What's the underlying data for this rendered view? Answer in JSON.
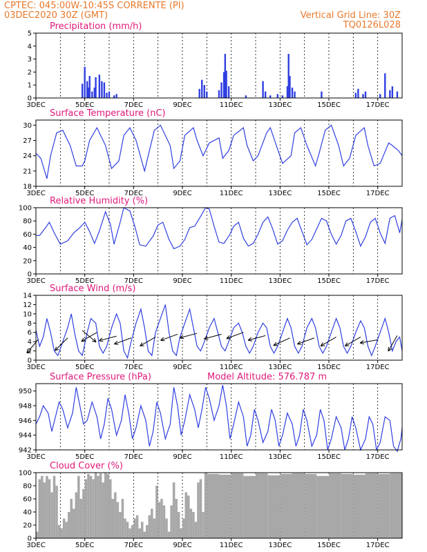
{
  "header": {
    "line1_left": "CPTEC:   045:00W-10:45S   CORRENTE (PI)",
    "line2_left": "03DEC2020 30Z (GMT)",
    "line1_right": "Vertical Grid Line: 30Z",
    "line2_right": "TQ0126L028"
  },
  "colors": {
    "series": "#2f3fe0",
    "cloud": "#a8a8a8",
    "title": "#e0187a",
    "header": "#e8792a"
  },
  "x_ticks": [
    "3DEC",
    "5DEC",
    "7DEC",
    "9DEC",
    "11DEC",
    "13DEC",
    "15DEC",
    "17DEC"
  ],
  "chart_data": [
    {
      "type": "bar",
      "title": "Precipitation (mm/h)",
      "ylim": [
        0,
        5
      ],
      "yticks": [
        0,
        1,
        2,
        3,
        4,
        5
      ],
      "x": [
        4.9,
        5.0,
        5.1,
        5.15,
        5.2,
        5.3,
        5.4,
        5.45,
        5.6,
        5.7,
        5.8,
        5.9,
        6.0,
        6.2,
        6.3,
        9.7,
        9.8,
        9.9,
        10.0,
        10.5,
        10.6,
        10.7,
        10.75,
        10.8,
        10.9,
        11.6,
        12.3,
        12.4,
        12.6,
        12.9,
        13.1,
        13.3,
        13.35,
        13.4,
        13.5,
        13.6,
        14.7,
        16.1,
        16.2,
        16.4,
        16.5,
        17.1,
        17.3,
        17.5,
        17.6,
        17.8
      ],
      "values": [
        1.1,
        2.4,
        1.3,
        0.8,
        1.7,
        0.5,
        0.8,
        1.6,
        1.8,
        1.3,
        1.2,
        0.4,
        0.5,
        0.2,
        0.3,
        0.7,
        1.4,
        1.0,
        0.5,
        0.6,
        1.2,
        2.0,
        3.4,
        2.1,
        0.9,
        0.2,
        1.3,
        0.5,
        0.2,
        0.3,
        0.2,
        0.9,
        3.4,
        1.7,
        0.8,
        0.5,
        0.5,
        0.4,
        0.7,
        0.3,
        0.5,
        0.3,
        1.9,
        0.6,
        0.9,
        0.5
      ]
    },
    {
      "type": "line",
      "title": "Surface Temperature (nC)",
      "ylim": [
        18,
        31
      ],
      "yticks": [
        18,
        21,
        24,
        27,
        30
      ],
      "x": [
        3.0,
        3.2,
        3.45,
        3.6,
        3.85,
        4.1,
        4.4,
        4.65,
        4.9,
        5.0,
        5.2,
        5.5,
        5.85,
        6.1,
        6.4,
        6.6,
        6.85,
        7.1,
        7.45,
        7.6,
        7.85,
        8.1,
        8.5,
        8.65,
        8.9,
        9.1,
        9.45,
        9.6,
        9.85,
        10.1,
        10.5,
        10.65,
        10.9,
        11.1,
        11.5,
        11.65,
        11.9,
        12.1,
        12.45,
        12.6,
        12.85,
        13.1,
        13.45,
        13.6,
        13.85,
        14.1,
        14.45,
        14.6,
        14.85,
        15.1,
        15.4,
        15.6,
        15.85,
        16.1,
        16.45,
        16.6,
        16.85,
        17.1,
        17.45,
        17.6,
        17.85,
        18.0
      ],
      "values": [
        24.5,
        23.5,
        19.5,
        24,
        28.5,
        29,
        26,
        22,
        22,
        23,
        27,
        29.5,
        26,
        21.5,
        23,
        28,
        29.5,
        27,
        21,
        24,
        29,
        30,
        26,
        21.5,
        23,
        28,
        29.5,
        27,
        24,
        26.5,
        27.5,
        23.5,
        25,
        28,
        29.5,
        26,
        23,
        24,
        28.5,
        29.5,
        26,
        22.5,
        24,
        28.5,
        29.5,
        26,
        22,
        24.5,
        29,
        30,
        26,
        22,
        23.5,
        28,
        29.5,
        26,
        22,
        22.5,
        26.5,
        26,
        25,
        24
      ]
    },
    {
      "type": "line",
      "title": "Relative Humidity (%)",
      "ylim": [
        0,
        100
      ],
      "yticks": [
        0,
        20,
        40,
        60,
        80,
        100
      ],
      "x": [
        3.0,
        3.15,
        3.4,
        3.55,
        3.75,
        4.0,
        4.3,
        4.55,
        4.8,
        5.0,
        5.2,
        5.4,
        5.6,
        5.85,
        6.05,
        6.2,
        6.45,
        6.6,
        6.85,
        7.05,
        7.25,
        7.5,
        7.8,
        8.0,
        8.2,
        8.45,
        8.65,
        8.9,
        9.1,
        9.3,
        9.5,
        9.7,
        9.95,
        10.1,
        10.3,
        10.5,
        10.7,
        10.95,
        11.1,
        11.3,
        11.5,
        11.7,
        11.9,
        12.1,
        12.3,
        12.5,
        12.7,
        12.9,
        13.1,
        13.3,
        13.5,
        13.7,
        13.9,
        14.1,
        14.3,
        14.5,
        14.7,
        14.9,
        15.1,
        15.3,
        15.5,
        15.7,
        15.9,
        16.1,
        16.3,
        16.5,
        16.7,
        16.9,
        17.1,
        17.3,
        17.5,
        17.7,
        17.9,
        18.0
      ],
      "values": [
        58,
        58,
        70,
        78,
        62,
        45,
        50,
        62,
        70,
        78,
        64,
        46,
        65,
        94,
        75,
        45,
        78,
        100,
        95,
        72,
        44,
        42,
        57,
        74,
        78,
        52,
        38,
        42,
        52,
        70,
        72,
        84,
        100,
        98,
        72,
        48,
        46,
        60,
        72,
        78,
        54,
        42,
        46,
        60,
        78,
        86,
        68,
        45,
        50,
        66,
        78,
        84,
        64,
        44,
        52,
        68,
        84,
        80,
        60,
        45,
        58,
        80,
        84,
        64,
        42,
        56,
        78,
        84,
        62,
        46,
        84,
        88,
        62,
        82
      ]
    },
    {
      "type": "line",
      "title": "Surface Wind (m/s)",
      "ylim": [
        0,
        14
      ],
      "yticks": [
        0,
        2,
        4,
        6,
        8,
        10,
        12,
        14
      ],
      "x": [
        3.0,
        3.15,
        3.3,
        3.45,
        3.6,
        3.75,
        3.9,
        4.1,
        4.3,
        4.45,
        4.6,
        4.75,
        4.9,
        5.1,
        5.25,
        5.45,
        5.6,
        5.75,
        5.9,
        6.1,
        6.3,
        6.45,
        6.6,
        6.75,
        6.9,
        7.1,
        7.3,
        7.45,
        7.6,
        7.75,
        7.9,
        8.1,
        8.3,
        8.45,
        8.6,
        8.75,
        8.9,
        9.1,
        9.3,
        9.45,
        9.6,
        9.75,
        9.9,
        10.1,
        10.3,
        10.45,
        10.6,
        10.75,
        10.9,
        11.1,
        11.3,
        11.45,
        11.6,
        11.75,
        11.9,
        12.1,
        12.3,
        12.45,
        12.6,
        12.75,
        12.9,
        13.1,
        13.3,
        13.45,
        13.6,
        13.75,
        13.9,
        14.1,
        14.3,
        14.45,
        14.6,
        14.75,
        14.9,
        15.1,
        15.3,
        15.45,
        15.6,
        15.75,
        15.9,
        16.1,
        16.3,
        16.45,
        16.6,
        16.75,
        16.9,
        17.1,
        17.3,
        17.45,
        17.6,
        17.75,
        17.9,
        18.0
      ],
      "values": [
        6.5,
        3,
        5,
        9,
        6,
        2,
        1,
        4,
        7,
        10,
        5.5,
        2,
        1,
        6,
        9,
        8,
        3,
        1.5,
        3,
        7,
        10,
        8,
        2,
        0.5,
        4,
        8,
        11,
        7,
        2,
        1,
        6,
        9,
        12,
        6,
        2,
        1,
        5,
        8,
        11,
        7,
        3,
        2,
        4,
        7,
        9,
        6,
        3,
        2,
        4,
        7,
        8,
        6,
        3,
        1.5,
        3,
        6,
        8,
        7,
        3,
        1.5,
        3,
        6,
        9,
        7,
        3,
        1.5,
        3,
        7,
        9,
        7,
        3,
        1.5,
        3,
        6,
        9,
        7,
        3,
        1.5,
        3,
        6,
        8.5,
        7,
        3,
        1,
        3,
        6,
        9,
        6,
        2,
        4,
        5,
        2
      ]
    },
    {
      "type": "line",
      "title": "Surface Pressure (hPa)",
      "subtitle": "Model Altitude: 576.787 m",
      "ylim": [
        942,
        951
      ],
      "yticks": [
        942,
        944,
        946,
        948,
        950
      ],
      "x": [
        3.0,
        3.15,
        3.3,
        3.5,
        3.65,
        3.8,
        3.95,
        4.1,
        4.3,
        4.5,
        4.65,
        4.8,
        4.95,
        5.1,
        5.3,
        5.5,
        5.65,
        5.8,
        5.95,
        6.1,
        6.3,
        6.5,
        6.65,
        6.8,
        6.95,
        7.1,
        7.3,
        7.5,
        7.65,
        7.8,
        7.95,
        8.1,
        8.3,
        8.5,
        8.65,
        8.8,
        8.95,
        9.1,
        9.3,
        9.5,
        9.65,
        9.8,
        9.95,
        10.1,
        10.3,
        10.5,
        10.65,
        10.8,
        10.95,
        11.1,
        11.3,
        11.5,
        11.65,
        11.8,
        11.95,
        12.1,
        12.3,
        12.5,
        12.65,
        12.8,
        12.95,
        13.1,
        13.3,
        13.5,
        13.65,
        13.8,
        13.95,
        14.1,
        14.3,
        14.5,
        14.65,
        14.8,
        14.95,
        15.1,
        15.3,
        15.5,
        15.65,
        15.8,
        15.95,
        16.1,
        16.3,
        16.5,
        16.65,
        16.8,
        16.95,
        17.1,
        17.3,
        17.5,
        17.65,
        17.8,
        17.95,
        18.0
      ],
      "values": [
        945.5,
        946.5,
        948,
        947,
        944.5,
        946.5,
        948.5,
        947.5,
        945,
        947,
        950.5,
        948,
        945.5,
        946,
        948.5,
        946.5,
        943.5,
        945.5,
        949,
        947.5,
        944,
        946,
        949.5,
        947,
        943.5,
        945,
        948,
        946,
        942.5,
        944.5,
        948.5,
        947,
        943.5,
        945.5,
        950.5,
        948,
        944,
        946,
        949.5,
        947.5,
        945,
        947.5,
        950.5,
        949,
        946,
        948,
        950.8,
        948,
        943.5,
        945.5,
        948.5,
        946.5,
        942.5,
        944,
        947.5,
        946,
        943,
        944.5,
        947.5,
        946,
        942.5,
        944,
        947,
        945.5,
        942.5,
        944,
        947.5,
        946,
        942.5,
        944,
        947.5,
        946,
        942,
        943.5,
        946.5,
        945,
        942,
        943.5,
        946.5,
        945,
        942,
        943.5,
        946.5,
        945.5,
        942,
        943,
        946.5,
        946,
        942.5,
        941.8,
        943.5,
        945
      ]
    },
    {
      "type": "area",
      "title": "Cloud Cover (%)",
      "ylim": [
        0,
        100
      ],
      "yticks": [
        0,
        20,
        40,
        60,
        80,
        100
      ],
      "x": [
        3.0,
        3.1,
        3.2,
        3.3,
        3.4,
        3.5,
        3.6,
        3.7,
        3.8,
        3.9,
        4.0,
        4.1,
        4.2,
        4.3,
        4.4,
        4.5,
        4.6,
        4.7,
        4.8,
        4.9,
        5.0,
        5.1,
        5.2,
        5.3,
        5.4,
        5.5,
        5.6,
        5.7,
        5.8,
        5.9,
        6.0,
        6.1,
        6.2,
        6.3,
        6.4,
        6.5,
        6.6,
        6.7,
        6.8,
        6.9,
        7.0,
        7.1,
        7.2,
        7.3,
        7.4,
        7.5,
        7.6,
        7.7,
        7.8,
        7.9,
        8.0,
        8.1,
        8.2,
        8.3,
        8.4,
        8.5,
        8.6,
        8.7,
        8.8,
        8.9,
        9.0,
        9.1,
        9.2,
        9.3,
        9.4,
        9.5,
        9.6,
        9.7,
        9.8,
        9.9,
        10.0,
        10.5,
        11.0,
        11.5,
        12.0,
        12.5,
        13.0,
        13.5,
        14.0,
        14.5,
        15.0,
        15.5,
        16.0,
        16.5,
        17.0,
        17.5,
        18.0
      ],
      "values": [
        10,
        90,
        95,
        85,
        95,
        90,
        70,
        95,
        80,
        20,
        15,
        30,
        25,
        40,
        60,
        45,
        70,
        95,
        60,
        75,
        90,
        98,
        95,
        90,
        100,
        95,
        99,
        85,
        100,
        98,
        90,
        60,
        70,
        55,
        40,
        60,
        30,
        25,
        15,
        20,
        30,
        35,
        15,
        25,
        10,
        20,
        35,
        45,
        30,
        80,
        55,
        60,
        50,
        30,
        10,
        50,
        85,
        60,
        40,
        15,
        30,
        70,
        65,
        45,
        40,
        25,
        85,
        90,
        40,
        100,
        98,
        97,
        99,
        95,
        99,
        96,
        98,
        99,
        98,
        95,
        99,
        98,
        97,
        99,
        98,
        99,
        97
      ]
    }
  ]
}
